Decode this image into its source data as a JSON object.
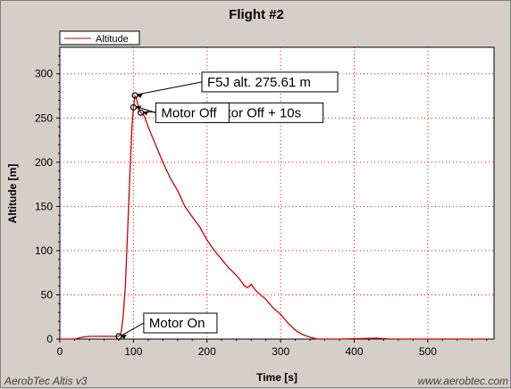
{
  "footer": {
    "left": "AerobTec Altis v3",
    "right": "www.aerobtec.com"
  },
  "colors": {
    "series": "#cc0000",
    "grid": "#ff0000",
    "background": "#d4d0c8",
    "plot": "#ffffff"
  },
  "chart_data": {
    "type": "line",
    "title": "Flight #2",
    "xlabel": "Time [s]",
    "ylabel": "Altitude [m]",
    "xlim": [
      0,
      590
    ],
    "ylim": [
      0,
      330
    ],
    "xticks": [
      0,
      100,
      200,
      300,
      400,
      500
    ],
    "yticks": [
      0,
      50,
      100,
      150,
      200,
      250,
      300
    ],
    "grid": true,
    "legend_position": "top-left",
    "series": [
      {
        "name": "Altitude",
        "color": "#cc0000",
        "points": [
          [
            0,
            0
          ],
          [
            20,
            0
          ],
          [
            30,
            2
          ],
          [
            40,
            3
          ],
          [
            60,
            3
          ],
          [
            75,
            3
          ],
          [
            80,
            3
          ],
          [
            83,
            6
          ],
          [
            86,
            25
          ],
          [
            89,
            60
          ],
          [
            92,
            120
          ],
          [
            95,
            185
          ],
          [
            98,
            240
          ],
          [
            100,
            262
          ],
          [
            102,
            275
          ],
          [
            104,
            272
          ],
          [
            106,
            265
          ],
          [
            108,
            259
          ],
          [
            110,
            256
          ],
          [
            115,
            252
          ],
          [
            120,
            240
          ],
          [
            130,
            220
          ],
          [
            140,
            200
          ],
          [
            150,
            182
          ],
          [
            160,
            168
          ],
          [
            170,
            150
          ],
          [
            180,
            138
          ],
          [
            190,
            127
          ],
          [
            200,
            112
          ],
          [
            210,
            100
          ],
          [
            220,
            90
          ],
          [
            230,
            80
          ],
          [
            240,
            72
          ],
          [
            245,
            67
          ],
          [
            250,
            61
          ],
          [
            255,
            58
          ],
          [
            260,
            62
          ],
          [
            265,
            56
          ],
          [
            270,
            52
          ],
          [
            280,
            45
          ],
          [
            290,
            35
          ],
          [
            300,
            28
          ],
          [
            310,
            18
          ],
          [
            320,
            10
          ],
          [
            330,
            5
          ],
          [
            340,
            2
          ],
          [
            350,
            0
          ],
          [
            380,
            0
          ],
          [
            430,
            1
          ],
          [
            450,
            0
          ],
          [
            500,
            0
          ],
          [
            540,
            0
          ],
          [
            560,
            0
          ],
          [
            580,
            0
          ]
        ]
      }
    ],
    "annotations": [
      {
        "label": "F5J alt. 275.61 m",
        "x": 102,
        "y": 275.6
      },
      {
        "label": "Motor Off + 10s",
        "x": 110,
        "y": 256
      },
      {
        "label": "Motor Off",
        "x": 100,
        "y": 262
      },
      {
        "label": "Motor On",
        "x": 80,
        "y": 3
      }
    ]
  }
}
